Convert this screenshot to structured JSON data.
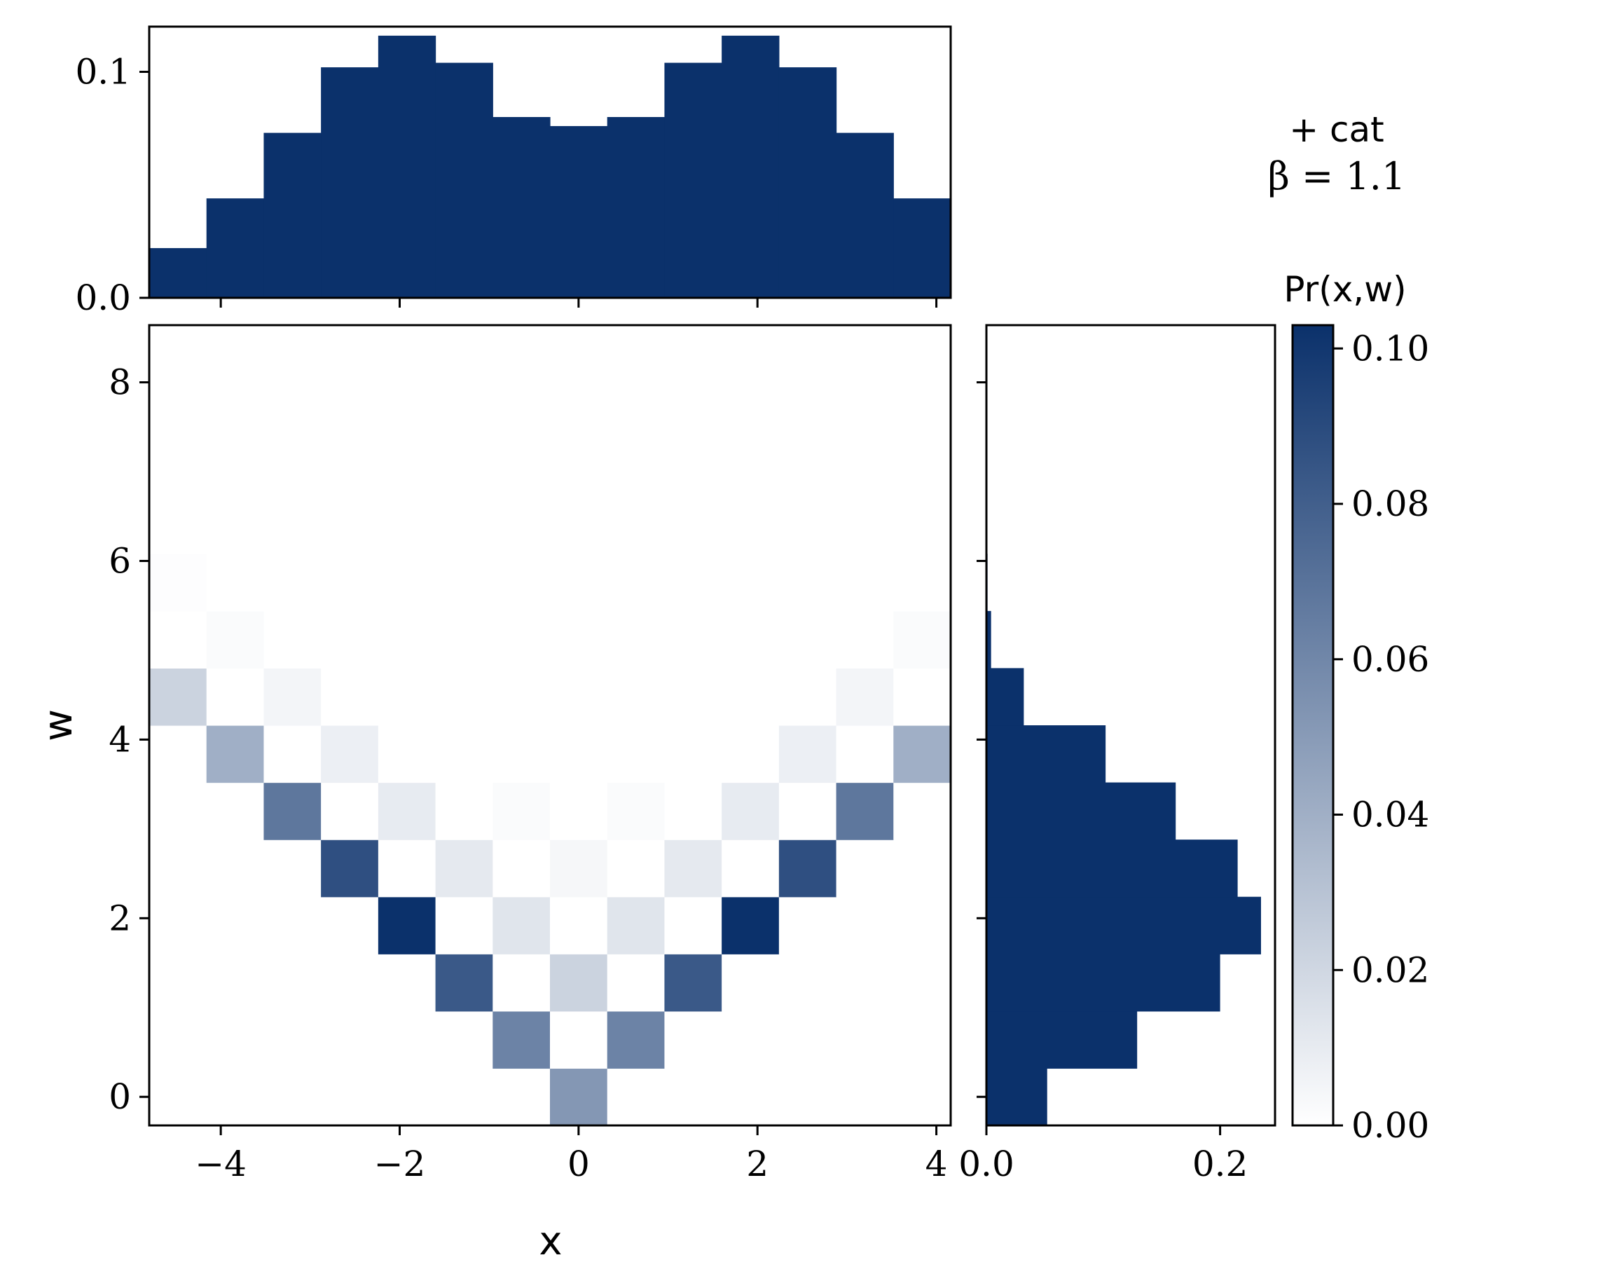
{
  "chart_data": {
    "type": "heatmap",
    "title": "",
    "xlabel": "x",
    "ylabel": "w",
    "colorbar_label": "Pr(x,w)",
    "annotation": {
      "line1": "+ cat",
      "line2": "β = 1.1"
    },
    "colormap": {
      "low": "#ffffff",
      "high": "#0b316b"
    },
    "bar_color": "#0b316b",
    "x_edges": [
      -4.8,
      -4.16,
      -3.52,
      -2.88,
      -2.24,
      -1.6,
      -0.96,
      -0.32,
      0.32,
      0.96,
      1.6,
      2.24,
      2.88,
      3.52,
      4.16
    ],
    "w_edges": [
      -0.32,
      0.32,
      0.96,
      1.6,
      2.24,
      2.88,
      3.52,
      4.16,
      4.8,
      5.44,
      6.08
    ],
    "xlim": [
      -4.8,
      4.16
    ],
    "ylim": [
      -0.32,
      8.64
    ],
    "clim": [
      0.0,
      0.103
    ],
    "x_ticks": [
      -4,
      -2,
      0,
      2,
      4
    ],
    "x_tick_labels": [
      "−4",
      "−2",
      "0",
      "2",
      "4"
    ],
    "y_ticks": [
      0,
      2,
      4,
      6,
      8
    ],
    "y_tick_labels": [
      "0",
      "2",
      "4",
      "6",
      "8"
    ],
    "joint": [
      [
        0.0,
        0.0,
        0.0,
        0.0,
        0.0,
        0.0,
        0.0,
        0.052,
        0.0,
        0.0,
        0.0,
        0.0,
        0.0,
        0.0
      ],
      [
        0.0,
        0.0,
        0.0,
        0.0,
        0.0,
        0.0,
        0.062,
        0.0,
        0.062,
        0.0,
        0.0,
        0.0,
        0.0,
        0.0
      ],
      [
        0.0,
        0.0,
        0.0,
        0.0,
        0.0,
        0.083,
        0.0,
        0.022,
        0.0,
        0.083,
        0.0,
        0.0,
        0.0,
        0.0
      ],
      [
        0.0,
        0.0,
        0.0,
        0.0,
        0.103,
        0.0,
        0.013,
        0.0,
        0.013,
        0.0,
        0.103,
        0.0,
        0.0,
        0.0
      ],
      [
        0.0,
        0.0,
        0.0,
        0.088,
        0.0,
        0.011,
        0.0,
        0.004,
        0.0,
        0.011,
        0.0,
        0.088,
        0.0,
        0.0
      ],
      [
        0.0,
        0.0,
        0.068,
        0.0,
        0.01,
        0.0,
        0.002,
        0.0,
        0.002,
        0.0,
        0.01,
        0.0,
        0.068,
        0.0
      ],
      [
        0.0,
        0.04,
        0.0,
        0.008,
        0.0,
        0.0,
        0.0,
        0.0,
        0.0,
        0.0,
        0.0,
        0.008,
        0.0,
        0.04
      ],
      [
        0.022,
        0.0,
        0.005,
        0.0,
        0.0,
        0.0,
        0.0,
        0.0,
        0.0,
        0.0,
        0.0,
        0.0,
        0.005,
        0.0
      ],
      [
        0.0,
        0.002,
        0.0,
        0.0,
        0.0,
        0.0,
        0.0,
        0.0,
        0.0,
        0.0,
        0.0,
        0.0,
        0.0,
        0.002
      ],
      [
        0.001,
        0.0,
        0.0,
        0.0,
        0.0,
        0.0,
        0.0,
        0.0,
        0.0,
        0.0,
        0.0,
        0.0,
        0.0,
        0.0
      ]
    ],
    "marginal_x": {
      "values": [
        0.022,
        0.044,
        0.073,
        0.102,
        0.116,
        0.104,
        0.08,
        0.076,
        0.08,
        0.104,
        0.116,
        0.102,
        0.073,
        0.044
      ],
      "ylim": [
        0.0,
        0.12
      ],
      "ticks": [
        0.0,
        0.1
      ],
      "tick_labels": [
        "0.0",
        "0.1"
      ]
    },
    "marginal_w": {
      "values": [
        0.052,
        0.129,
        0.2,
        0.235,
        0.215,
        0.162,
        0.102,
        0.032,
        0.004,
        0.001
      ],
      "xlim": [
        0.0,
        0.247
      ],
      "ticks": [
        0.0,
        0.2
      ],
      "tick_labels": [
        "0.0",
        "0.2"
      ]
    },
    "colorbar": {
      "ticks": [
        0.0,
        0.02,
        0.04,
        0.06,
        0.08,
        0.1
      ],
      "tick_labels": [
        "0.00",
        "0.02",
        "0.04",
        "0.06",
        "0.08",
        "0.10"
      ]
    }
  }
}
